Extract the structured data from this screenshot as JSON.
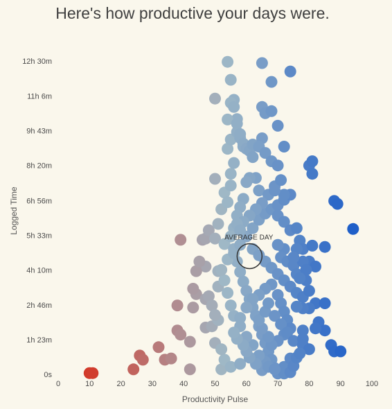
{
  "title": "Here's how productive your days were.",
  "chart_data": {
    "type": "scatter",
    "title": "Here's how productive your days were.",
    "xlabel": "Productivity Pulse",
    "ylabel": "Logged Time",
    "xlim": [
      0,
      100
    ],
    "ylim_minutes": [
      0,
      750
    ],
    "x_ticks": [
      "0",
      "10",
      "20",
      "30",
      "40",
      "50",
      "60",
      "70",
      "80",
      "90",
      "100"
    ],
    "y_tick_minutes": [
      0,
      83,
      166,
      250,
      333,
      416,
      500,
      583,
      666,
      750
    ],
    "y_ticks": [
      "0s",
      "1h 23m",
      "2h 46m",
      "4h 10m",
      "5h 33m",
      "6h 56m",
      "8h 20m",
      "9h 43m",
      "11h 6m",
      "12h 30m"
    ],
    "annotation": {
      "label": "AVERAGE DAY",
      "x": 61,
      "y_minutes": 283
    },
    "colors": {
      "low": "#d23a2a",
      "mid": "#9fb8c6",
      "high": "#1f5fc8"
    },
    "points": [
      [
        10,
        3
      ],
      [
        11,
        3
      ],
      [
        24,
        12
      ],
      [
        26,
        45
      ],
      [
        27,
        35
      ],
      [
        32,
        65
      ],
      [
        34,
        35
      ],
      [
        36,
        38
      ],
      [
        38,
        105
      ],
      [
        39,
        95
      ],
      [
        42,
        12
      ],
      [
        42,
        78
      ],
      [
        38,
        165
      ],
      [
        39,
        322
      ],
      [
        43,
        160
      ],
      [
        44,
        192
      ],
      [
        47,
        112
      ],
      [
        47,
        180
      ],
      [
        48,
        187
      ],
      [
        49,
        115
      ],
      [
        52,
        12
      ],
      [
        53,
        35
      ],
      [
        55,
        18
      ],
      [
        58,
        25
      ],
      [
        50,
        75
      ],
      [
        51,
        130
      ],
      [
        52,
        60
      ],
      [
        47,
        258
      ],
      [
        49,
        165
      ],
      [
        51,
        210
      ],
      [
        51,
        247
      ],
      [
        50,
        142
      ],
      [
        43,
        205
      ],
      [
        44,
        247
      ],
      [
        45,
        270
      ],
      [
        46,
        322
      ],
      [
        47,
        325
      ],
      [
        48,
        345
      ],
      [
        50,
        325
      ],
      [
        51,
        360
      ],
      [
        53,
        312
      ],
      [
        50,
        468
      ],
      [
        52,
        395
      ],
      [
        53,
        435
      ],
      [
        54,
        412
      ],
      [
        55,
        452
      ],
      [
        55,
        480
      ],
      [
        56,
        506
      ],
      [
        54,
        540
      ],
      [
        55,
        562
      ],
      [
        57,
        580
      ],
      [
        58,
        566
      ],
      [
        57,
        611
      ],
      [
        59,
        545
      ],
      [
        50,
        660
      ],
      [
        54,
        748
      ],
      [
        55,
        705
      ],
      [
        56,
        657
      ],
      [
        54,
        610
      ],
      [
        55,
        650
      ],
      [
        56,
        640
      ],
      [
        57,
        600
      ],
      [
        58,
        575
      ],
      [
        59,
        552
      ],
      [
        60,
        540
      ],
      [
        61,
        535
      ],
      [
        62,
        520
      ],
      [
        63,
        470
      ],
      [
        64,
        440
      ],
      [
        61,
        470
      ],
      [
        60,
        460
      ],
      [
        59,
        420
      ],
      [
        58,
        400
      ],
      [
        57,
        380
      ],
      [
        56,
        350
      ],
      [
        55,
        330
      ],
      [
        56,
        300
      ],
      [
        57,
        270
      ],
      [
        58,
        245
      ],
      [
        59,
        222
      ],
      [
        60,
        200
      ],
      [
        61,
        180
      ],
      [
        62,
        160
      ],
      [
        63,
        140
      ],
      [
        64,
        115
      ],
      [
        65,
        95
      ],
      [
        66,
        75
      ],
      [
        67,
        55
      ],
      [
        68,
        35
      ],
      [
        69,
        15
      ],
      [
        66,
        30
      ],
      [
        64,
        45
      ],
      [
        62,
        70
      ],
      [
        60,
        90
      ],
      [
        58,
        115
      ],
      [
        56,
        140
      ],
      [
        55,
        165
      ],
      [
        54,
        195
      ],
      [
        53,
        225
      ],
      [
        52,
        250
      ],
      [
        54,
        275
      ],
      [
        56,
        290
      ],
      [
        58,
        310
      ],
      [
        60,
        330
      ],
      [
        62,
        350
      ],
      [
        64,
        370
      ],
      [
        66,
        385
      ],
      [
        68,
        395
      ],
      [
        70,
        405
      ],
      [
        72,
        418
      ],
      [
        74,
        430
      ],
      [
        67,
        430
      ],
      [
        65,
        410
      ],
      [
        63,
        395
      ],
      [
        61,
        380
      ],
      [
        59,
        365
      ],
      [
        57,
        360
      ],
      [
        58,
        345
      ],
      [
        62,
        300
      ],
      [
        64,
        285
      ],
      [
        66,
        270
      ],
      [
        68,
        255
      ],
      [
        70,
        240
      ],
      [
        72,
        225
      ],
      [
        74,
        210
      ],
      [
        76,
        195
      ],
      [
        78,
        185
      ],
      [
        68,
        215
      ],
      [
        66,
        205
      ],
      [
        64,
        190
      ],
      [
        62,
        180
      ],
      [
        60,
        160
      ],
      [
        58,
        135
      ],
      [
        65,
        745
      ],
      [
        68,
        700
      ],
      [
        74,
        725
      ],
      [
        65,
        640
      ],
      [
        66,
        625
      ],
      [
        68,
        630
      ],
      [
        70,
        595
      ],
      [
        72,
        545
      ],
      [
        65,
        565
      ],
      [
        62,
        550
      ],
      [
        64,
        545
      ],
      [
        66,
        530
      ],
      [
        68,
        510
      ],
      [
        70,
        500
      ],
      [
        69,
        450
      ],
      [
        71,
        465
      ],
      [
        72,
        430
      ],
      [
        69,
        440
      ],
      [
        70,
        380
      ],
      [
        72,
        365
      ],
      [
        74,
        345
      ],
      [
        76,
        350
      ],
      [
        77,
        320
      ],
      [
        78,
        300
      ],
      [
        72,
        300
      ],
      [
        70,
        310
      ],
      [
        71,
        280
      ],
      [
        73,
        270
      ],
      [
        75,
        260
      ],
      [
        76,
        240
      ],
      [
        70,
        190
      ],
      [
        71,
        170
      ],
      [
        72,
        150
      ],
      [
        73,
        130
      ],
      [
        74,
        110
      ],
      [
        72,
        95
      ],
      [
        70,
        80
      ],
      [
        68,
        70
      ],
      [
        67,
        90
      ],
      [
        65,
        110
      ],
      [
        64,
        130
      ],
      [
        66,
        150
      ],
      [
        67,
        170
      ],
      [
        69,
        140
      ],
      [
        71,
        120
      ],
      [
        73,
        100
      ],
      [
        75,
        80
      ],
      [
        70,
        2
      ],
      [
        72,
        2
      ],
      [
        72,
        18
      ],
      [
        74,
        38
      ],
      [
        65,
        10
      ],
      [
        67,
        18
      ],
      [
        69,
        12
      ],
      [
        63,
        25
      ],
      [
        61,
        40
      ],
      [
        60,
        55
      ],
      [
        59,
        70
      ],
      [
        57,
        85
      ],
      [
        56,
        100
      ],
      [
        80,
        500
      ],
      [
        81,
        480
      ],
      [
        81,
        510
      ],
      [
        88,
        415
      ],
      [
        89,
        408
      ],
      [
        94,
        348
      ],
      [
        85,
        305
      ],
      [
        81,
        308
      ],
      [
        80,
        270
      ],
      [
        82,
        258
      ],
      [
        78,
        270
      ],
      [
        79,
        250
      ],
      [
        76,
        300
      ],
      [
        75,
        280
      ],
      [
        82,
        170
      ],
      [
        80,
        158
      ],
      [
        78,
        158
      ],
      [
        76,
        162
      ],
      [
        80,
        200
      ],
      [
        79,
        225
      ],
      [
        77,
        230
      ],
      [
        83,
        125
      ],
      [
        78,
        105
      ],
      [
        78,
        85
      ],
      [
        78,
        70
      ],
      [
        80,
        60
      ],
      [
        87,
        70
      ],
      [
        88,
        55
      ],
      [
        90,
        55
      ],
      [
        85,
        105
      ],
      [
        85,
        170
      ],
      [
        82,
        110
      ],
      [
        74,
        5
      ],
      [
        75,
        20
      ],
      [
        76,
        40
      ],
      [
        77,
        50
      ]
    ]
  }
}
